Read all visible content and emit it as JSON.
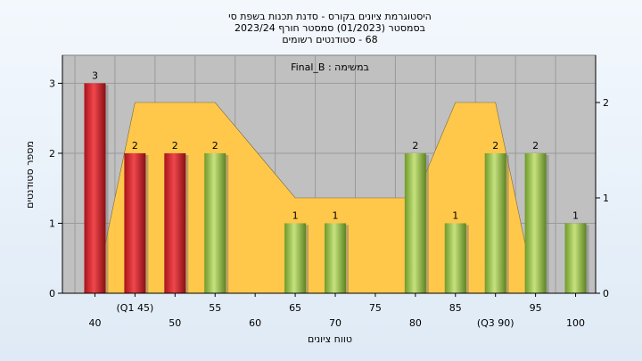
{
  "chart_data": {
    "type": "bar",
    "title_lines": [
      "היסטוגרמת ציונים בקורס - סדנת תכנות בשפת סי",
      "בסמסטר  (01/2023)  סמסטר חורף  2023/24",
      "68 - סטודנטים רשומים"
    ],
    "annotation": "במשימה : Final_B",
    "xlabel": "טווח ציונים",
    "ylabel": "מספר סטודנטים",
    "x_tick_labels": [
      "40",
      "(Q1 45)",
      "50",
      "55",
      "60",
      "65",
      "70",
      "75",
      "80",
      "85",
      "(Q3 90)",
      "95",
      "100"
    ],
    "y_left_ticks": [
      "0",
      "1",
      "2",
      "3"
    ],
    "y_right_ticks": [
      "0",
      "1",
      "2"
    ],
    "ylim_left": [
      0,
      3.4
    ],
    "ylim_right": [
      0,
      2
    ],
    "grid": true,
    "series": [
      {
        "type": "bar",
        "values": [
          3,
          2,
          2,
          2,
          0,
          1,
          1,
          0,
          2,
          1,
          2,
          2,
          1
        ],
        "colors": [
          "#d8232a",
          "#d8232a",
          "#d8232a",
          "#8fbf3f",
          null,
          "#8fbf3f",
          "#8fbf3f",
          null,
          "#8fbf3f",
          "#8fbf3f",
          "#8fbf3f",
          "#8fbf3f",
          "#8fbf3f"
        ]
      },
      {
        "type": "area",
        "axis": "right",
        "color": "#ffc84a",
        "values": [
          0,
          2,
          2,
          2,
          1.5,
          1,
          1,
          1,
          1,
          2,
          2,
          0,
          0
        ]
      }
    ],
    "colors": {
      "red_bar": "#d8232a",
      "green_bar": "#8fbf3f",
      "area": "#ffc84a",
      "plot_bg": "#c0c0c0",
      "page_bg": "#e6eff9"
    }
  }
}
